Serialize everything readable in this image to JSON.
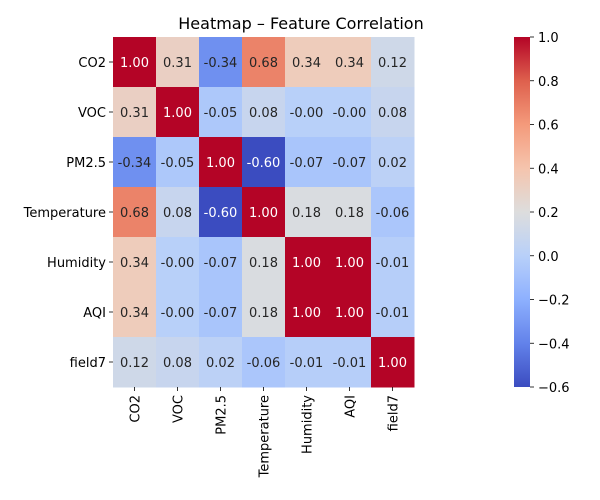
{
  "chart_data": {
    "type": "heatmap",
    "title": "Heatmap – Feature Correlation",
    "x_labels": [
      "CO2",
      "VOC",
      "PM2.5",
      "Temperature",
      "Humidity",
      "AQI",
      "field7"
    ],
    "y_labels": [
      "CO2",
      "VOC",
      "PM2.5",
      "Temperature",
      "Humidity",
      "AQI",
      "field7"
    ],
    "values": [
      [
        1.0,
        0.31,
        -0.34,
        0.68,
        0.34,
        0.34,
        0.12
      ],
      [
        0.31,
        1.0,
        -0.05,
        0.08,
        -0.0,
        -0.0,
        0.08
      ],
      [
        -0.34,
        -0.05,
        1.0,
        -0.6,
        -0.07,
        -0.07,
        0.02
      ],
      [
        0.68,
        0.08,
        -0.6,
        1.0,
        0.18,
        0.18,
        -0.06
      ],
      [
        0.34,
        -0.0,
        -0.07,
        0.18,
        1.0,
        1.0,
        -0.01
      ],
      [
        0.34,
        -0.0,
        -0.07,
        0.18,
        1.0,
        1.0,
        -0.01
      ],
      [
        0.12,
        0.08,
        0.02,
        -0.06,
        -0.01,
        -0.01,
        1.0
      ]
    ],
    "value_labels": [
      [
        "1.00",
        "0.31",
        "-0.34",
        "0.68",
        "0.34",
        "0.34",
        "0.12"
      ],
      [
        "0.31",
        "1.00",
        "-0.05",
        "0.08",
        "-0.00",
        "-0.00",
        "0.08"
      ],
      [
        "-0.34",
        "-0.05",
        "1.00",
        "-0.60",
        "-0.07",
        "-0.07",
        "0.02"
      ],
      [
        "0.68",
        "0.08",
        "-0.60",
        "1.00",
        "0.18",
        "0.18",
        "-0.06"
      ],
      [
        "0.34",
        "-0.00",
        "-0.07",
        "0.18",
        "1.00",
        "1.00",
        "-0.01"
      ],
      [
        "0.34",
        "-0.00",
        "-0.07",
        "0.18",
        "1.00",
        "1.00",
        "-0.01"
      ],
      [
        "0.12",
        "0.08",
        "0.02",
        "-0.06",
        "-0.01",
        "-0.01",
        "1.00"
      ]
    ],
    "colormap": "coolwarm",
    "vmin": -0.6,
    "vmax": 1.0,
    "colorbar_ticks": [
      1.0,
      0.8,
      0.6,
      0.4,
      0.2,
      0.0,
      -0.2,
      -0.4,
      -0.6
    ],
    "colorbar_tick_labels": [
      "1.0",
      "0.8",
      "0.6",
      "0.4",
      "0.2",
      "0.0",
      "−0.2",
      "−0.4",
      "−0.6"
    ],
    "xlabel": "",
    "ylabel": ""
  }
}
